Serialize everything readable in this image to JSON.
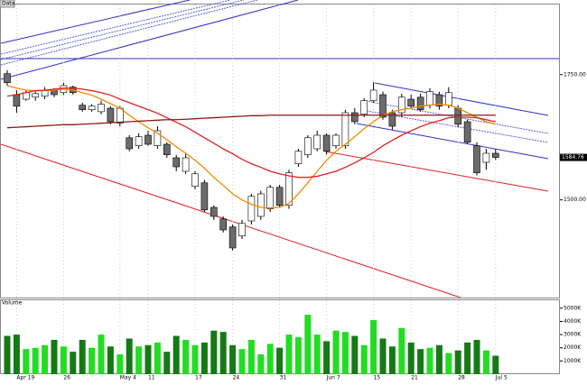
{
  "chart_data": {
    "type": "candlestick",
    "title": "Data",
    "volume_label": "Volume",
    "categories": [
      null,
      "Apr 19",
      null,
      null,
      null,
      null,
      "26",
      null,
      null,
      null,
      null,
      null,
      "May 4",
      null,
      null,
      "11",
      null,
      null,
      null,
      null,
      "17",
      null,
      null,
      null,
      "24",
      null,
      null,
      null,
      null,
      "31",
      null,
      null,
      null,
      null,
      "Jun 7",
      null,
      null,
      null,
      null,
      "15",
      null,
      null,
      null,
      "21",
      null,
      null,
      null,
      null,
      "28",
      null,
      null,
      null,
      "Jul 5"
    ],
    "open": [
      1752,
      1710,
      1701,
      1705,
      1707,
      1719,
      1714,
      1725,
      1689,
      1680,
      1676,
      1683,
      1653,
      1624,
      1608,
      1629,
      1608,
      1611,
      1584,
      1557,
      1527,
      1534,
      1485,
      1462,
      1446,
      1428,
      1458,
      1467,
      1482,
      1525,
      1489,
      1572,
      1590,
      1602,
      1629,
      1608,
      1608,
      1674,
      1671,
      1698,
      1710,
      1674,
      1674,
      1701,
      1705,
      1689,
      1710,
      1689,
      1683,
      1656,
      1608,
      1575,
      1593
    ],
    "high": [
      1759,
      1719,
      1719,
      1716,
      1725,
      1723,
      1734,
      1728,
      1694,
      1691,
      1698,
      1687,
      1687,
      1629,
      1633,
      1638,
      1647,
      1615,
      1590,
      1593,
      1557,
      1540,
      1489,
      1467,
      1451,
      1460,
      1512,
      1518,
      1530,
      1530,
      1560,
      1602,
      1629,
      1638,
      1633,
      1633,
      1680,
      1683,
      1703,
      1735,
      1716,
      1680,
      1712,
      1710,
      1712,
      1723,
      1716,
      1725,
      1689,
      1660,
      1615,
      1602,
      1602
    ],
    "low": [
      1728,
      1674,
      1698,
      1698,
      1701,
      1705,
      1710,
      1710,
      1676,
      1676,
      1671,
      1651,
      1647,
      1597,
      1602,
      1608,
      1602,
      1584,
      1557,
      1552,
      1521,
      1476,
      1460,
      1435,
      1399,
      1422,
      1451,
      1460,
      1476,
      1485,
      1482,
      1566,
      1584,
      1597,
      1590,
      1602,
      1602,
      1651,
      1665,
      1694,
      1660,
      1640,
      1665,
      1683,
      1676,
      1683,
      1680,
      1683,
      1645,
      1611,
      1549,
      1560,
      1580
    ],
    "close": [
      1734,
      1687,
      1714,
      1712,
      1719,
      1710,
      1728,
      1714,
      1680,
      1687,
      1691,
      1656,
      1683,
      1602,
      1626,
      1611,
      1638,
      1590,
      1566,
      1584,
      1552,
      1480,
      1467,
      1440,
      1404,
      1453,
      1507,
      1512,
      1525,
      1489,
      1554,
      1597,
      1624,
      1629,
      1597,
      1629,
      1674,
      1656,
      1698,
      1719,
      1665,
      1647,
      1705,
      1687,
      1680,
      1716,
      1687,
      1714,
      1651,
      1615,
      1554,
      1593,
      1584.76
    ],
    "up_color": "#ffffff",
    "down_color": "#6b6b6b",
    "series": [
      {
        "color": "#f08a00",
        "values": [
          1728,
          1723,
          1719,
          1718,
          1718,
          1719,
          1721,
          1719,
          1714,
          1709,
          1701,
          1692,
          1683,
          1669,
          1656,
          1644,
          1633,
          1620,
          1606,
          1593,
          1579,
          1563,
          1545,
          1529,
          1512,
          1500,
          1491,
          1485,
          1484,
          1485,
          1493,
          1512,
          1534,
          1557,
          1579,
          1597,
          1611,
          1626,
          1642,
          1656,
          1669,
          1676,
          1680,
          1683,
          1687,
          1689,
          1691,
          1689,
          1683,
          1674,
          1665,
          1656,
          1651
        ]
      },
      {
        "color": "#e02020",
        "values": [
          1707,
          1710,
          1714,
          1718,
          1719,
          1721,
          1723,
          1723,
          1721,
          1718,
          1714,
          1709,
          1701,
          1694,
          1687,
          1680,
          1673,
          1664,
          1655,
          1646,
          1635,
          1624,
          1613,
          1602,
          1592,
          1581,
          1572,
          1565,
          1557,
          1552,
          1548,
          1545,
          1545,
          1547,
          1552,
          1557,
          1565,
          1574,
          1584,
          1595,
          1608,
          1619,
          1629,
          1638,
          1646,
          1653,
          1658,
          1664,
          1665,
          1665,
          1664,
          1660,
          1656
        ]
      },
      {
        "color": "#8b1a1a",
        "values": [
          1644,
          1645,
          1646,
          1647,
          1648,
          1649,
          1650,
          1650,
          1651,
          1652,
          1653,
          1654,
          1655,
          1656,
          1657,
          1658,
          1659,
          1660,
          1660,
          1661,
          1662,
          1663,
          1664,
          1665,
          1666,
          1667,
          1668,
          1668,
          1669,
          1669,
          1669,
          1669,
          1669,
          1669,
          1669,
          1669,
          1669,
          1669,
          1669,
          1669,
          1669,
          1669,
          1669,
          1669,
          1669,
          1669,
          1669,
          1669,
          1669,
          1669,
          1669,
          1669,
          1669
        ]
      }
    ],
    "ylim": [
      1305,
      1890
    ],
    "yticks": [
      {
        "value": 1500,
        "label": "1500.00"
      },
      {
        "value": 1750,
        "label": "1750.00"
      }
    ],
    "volume": [
      2900,
      3000,
      1900,
      2000,
      2200,
      2600,
      2100,
      1700,
      2600,
      2000,
      3000,
      2100,
      1500,
      2700,
      2100,
      2200,
      2400,
      1700,
      2900,
      2600,
      2200,
      2400,
      3300,
      3200,
      2200,
      1900,
      2600,
      1500,
      2300,
      2000,
      3000,
      2800,
      4500,
      3000,
      2500,
      3300,
      3200,
      2900,
      2200,
      4100,
      2700,
      2100,
      3500,
      2400,
      1900,
      2000,
      2200,
      1600,
      1800,
      2400,
      2600,
      1800,
      1400
    ],
    "volume_up_color": "#22dd22",
    "volume_down_color": "#157a15",
    "volume_ylim": [
      0,
      5600
    ],
    "volume_ticks": [
      {
        "value": 1000,
        "label": "1000K"
      },
      {
        "value": 2000,
        "label": "2000K"
      },
      {
        "value": 3000,
        "label": "3000K"
      },
      {
        "value": 4000,
        "label": "4000K"
      },
      {
        "value": 5000,
        "label": "5000K"
      }
    ]
  }
}
